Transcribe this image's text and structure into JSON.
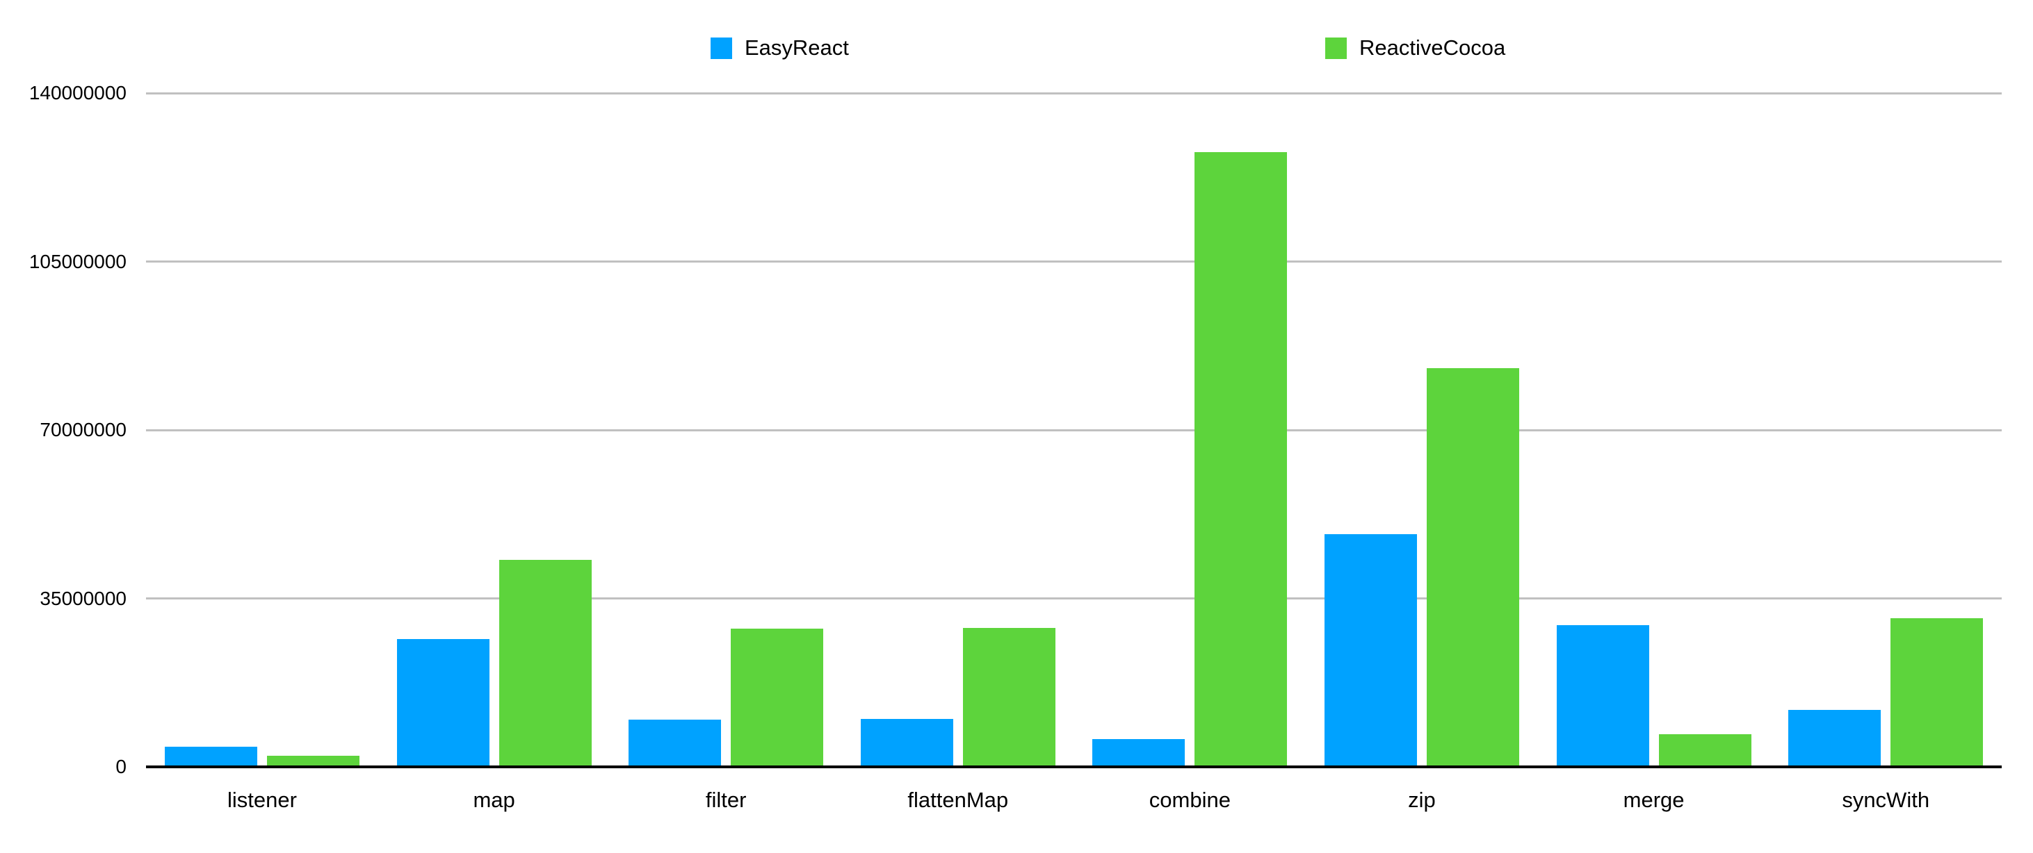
{
  "chart_data": {
    "type": "bar",
    "title": "",
    "xlabel": "",
    "ylabel": "",
    "categories": [
      "listener",
      "map",
      "filter",
      "flattenMap",
      "combine",
      "zip",
      "merge",
      "syncWith"
    ],
    "series": [
      {
        "name": "EasyReact",
        "color": "#00A2FF",
        "values": [
          4200000,
          26600000,
          9800000,
          10000000,
          5800000,
          48300000,
          29500000,
          11800000
        ]
      },
      {
        "name": "ReactiveCocoa",
        "color": "#5DD43C",
        "values": [
          2300000,
          43000000,
          28700000,
          28900000,
          127800000,
          82800000,
          6800000,
          30900000
        ]
      }
    ],
    "ylim": [
      0,
      140000000
    ],
    "yticks": [
      0,
      35000000,
      70000000,
      105000000,
      140000000
    ],
    "ytick_labels": [
      "0",
      "35000000",
      "70000000",
      "105000000",
      "140000000"
    ],
    "grid": true,
    "legend_position": "top",
    "grid_color": "#C0C0C0",
    "axis_color": "#000000",
    "background_color": "#FFFFFF"
  }
}
